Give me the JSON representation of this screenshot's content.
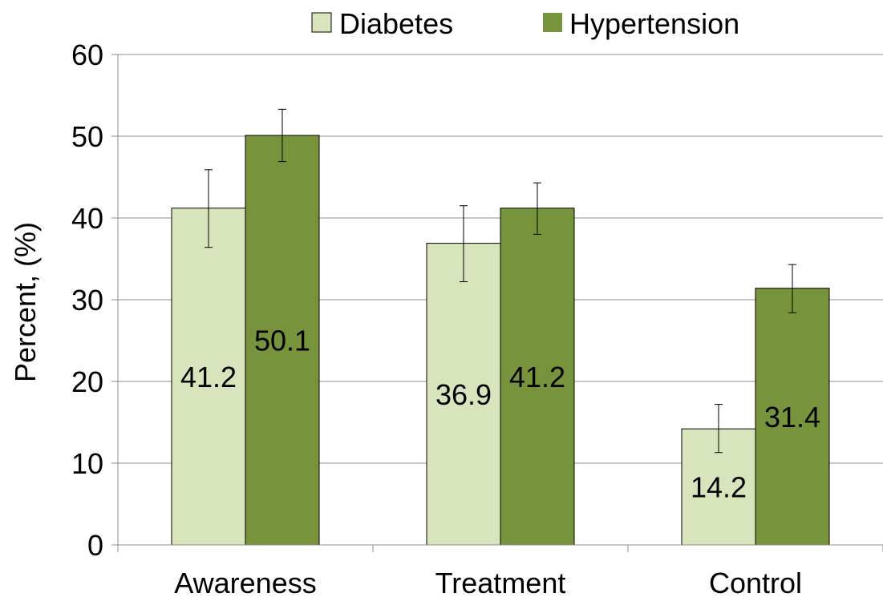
{
  "chart_data": {
    "type": "bar",
    "categories": [
      "Awareness",
      "Treatment",
      "Control"
    ],
    "series": [
      {
        "name": "Diabetes",
        "color": "#d8e4bc",
        "values": [
          41.2,
          36.9,
          14.2
        ],
        "error_low": [
          36.4,
          32.2,
          11.3
        ],
        "error_high": [
          45.9,
          41.5,
          17.2
        ],
        "labels": [
          "41.2",
          "36.9",
          "14.2"
        ]
      },
      {
        "name": "Hypertension",
        "color": "#77933c",
        "values": [
          50.1,
          41.2,
          31.4
        ],
        "error_low": [
          46.9,
          38.0,
          28.4
        ],
        "error_high": [
          53.3,
          44.3,
          34.3
        ],
        "labels": [
          "50.1",
          "41.2",
          "31.4"
        ]
      }
    ],
    "ylabel": "Percent, (%)",
    "xlabel": "",
    "ylim": [
      0,
      60
    ],
    "yticks": [
      "0",
      "10",
      "20",
      "30",
      "40",
      "50",
      "60"
    ],
    "grid": true,
    "legend_position": "top"
  }
}
